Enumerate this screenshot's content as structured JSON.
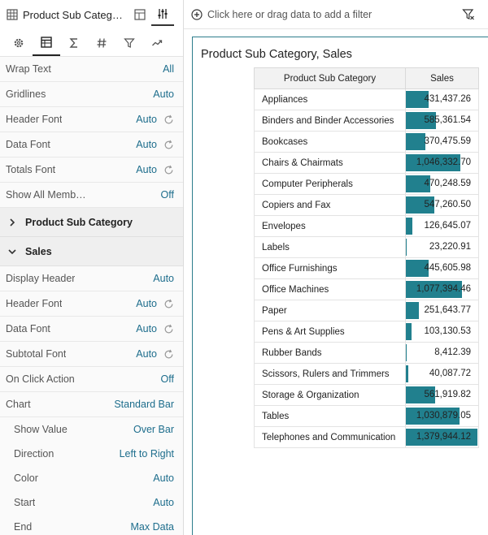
{
  "left_panel": {
    "header_title": "Product Sub Categ…",
    "tabs": [
      {
        "icon": "gear-icon"
      },
      {
        "icon": "table-icon"
      },
      {
        "icon": "sigma-icon"
      },
      {
        "icon": "hash-icon"
      },
      {
        "icon": "filter-icon"
      },
      {
        "icon": "trend-icon"
      }
    ],
    "general_props": [
      {
        "label": "Wrap Text",
        "value": "All"
      },
      {
        "label": "Gridlines",
        "value": "Auto"
      },
      {
        "label": "Header Font",
        "value": "Auto",
        "reset": true
      },
      {
        "label": "Data Font",
        "value": "Auto",
        "reset": true
      },
      {
        "label": "Totals Font",
        "value": "Auto",
        "reset": true
      },
      {
        "label": "Show All Memb…",
        "value": "Off"
      }
    ],
    "section_collapsed": "Product Sub Category",
    "section_expanded": "Sales",
    "sales_props": [
      {
        "label": "Display Header",
        "value": "Auto"
      },
      {
        "label": "Header Font",
        "value": "Auto",
        "reset": true
      },
      {
        "label": "Data Font",
        "value": "Auto",
        "reset": true
      },
      {
        "label": "Subtotal Font",
        "value": "Auto",
        "reset": true
      },
      {
        "label": "On Click Action",
        "value": "Off"
      },
      {
        "label": "Chart",
        "value": "Standard Bar"
      },
      {
        "label": "Show Value",
        "value": "Over Bar",
        "sub": true
      },
      {
        "label": "Direction",
        "value": "Left to Right",
        "sub": true
      },
      {
        "label": "Color",
        "value": "Auto",
        "sub": true
      },
      {
        "label": "Start",
        "value": "Auto",
        "sub": true
      },
      {
        "label": "End",
        "value": "Max Data",
        "sub": true
      }
    ]
  },
  "filter_bar": {
    "placeholder": "Click here or drag data to add a filter"
  },
  "viz": {
    "title": "Product Sub Category, Sales",
    "columns": [
      "Product Sub Category",
      "Sales"
    ],
    "bar_color": "#21808e",
    "rows": [
      {
        "category": "Appliances",
        "sales": "431,437.26",
        "value": 431437.26
      },
      {
        "category": "Binders and Binder Accessories",
        "sales": "585,361.54",
        "value": 585361.54
      },
      {
        "category": "Bookcases",
        "sales": "370,475.59",
        "value": 370475.59
      },
      {
        "category": "Chairs & Chairmats",
        "sales": "1,046,332.70",
        "value": 1046332.7
      },
      {
        "category": "Computer Peripherals",
        "sales": "470,248.59",
        "value": 470248.59
      },
      {
        "category": "Copiers and Fax",
        "sales": "547,260.50",
        "value": 547260.5
      },
      {
        "category": "Envelopes",
        "sales": "126,645.07",
        "value": 126645.07
      },
      {
        "category": "Labels",
        "sales": "23,220.91",
        "value": 23220.91
      },
      {
        "category": "Office Furnishings",
        "sales": "445,605.98",
        "value": 445605.98
      },
      {
        "category": "Office Machines",
        "sales": "1,077,394.46",
        "value": 1077394.46
      },
      {
        "category": "Paper",
        "sales": "251,643.77",
        "value": 251643.77
      },
      {
        "category": "Pens & Art Supplies",
        "sales": "103,130.53",
        "value": 103130.53
      },
      {
        "category": "Rubber Bands",
        "sales": "8,412.39",
        "value": 8412.39
      },
      {
        "category": "Scissors, Rulers and Trimmers",
        "sales": "40,087.72",
        "value": 40087.72
      },
      {
        "category": "Storage & Organization",
        "sales": "561,919.82",
        "value": 561919.82
      },
      {
        "category": "Tables",
        "sales": "1,030,879.05",
        "value": 1030879.05
      },
      {
        "category": "Telephones and Communication",
        "sales": "1,379,944.12",
        "value": 1379944.12
      }
    ]
  }
}
